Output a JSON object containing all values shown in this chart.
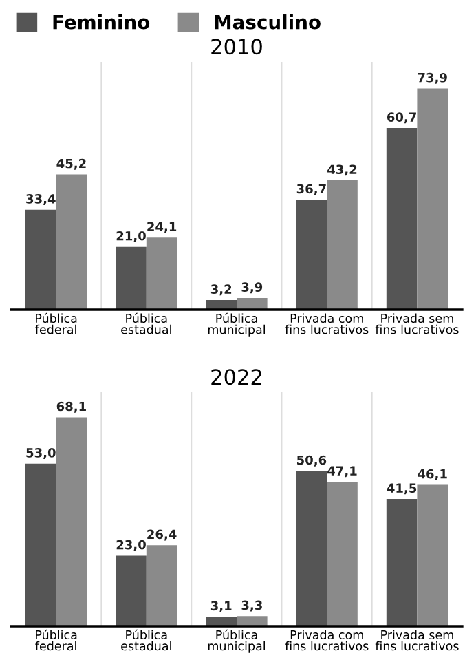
{
  "chart_data": [
    {
      "type": "bar",
      "title": "2010",
      "legend": "top left",
      "categories": [
        "Pública\nfederal",
        "Pública\nestadual",
        "Pública\nmunicipal",
        "Privada com\nfins lucrativos",
        "Privada sem\nfins lucrativos"
      ],
      "series": [
        {
          "name": "Feminino",
          "color": "#555555",
          "values": [
            33.4,
            21.0,
            3.2,
            36.7,
            60.7
          ],
          "value_labels": [
            "33,4",
            "21,0",
            "3,2",
            "36,7",
            "60,7"
          ]
        },
        {
          "name": "Masculino",
          "color": "#8a8a8a",
          "values": [
            45.2,
            24.1,
            3.9,
            43.2,
            73.9
          ],
          "value_labels": [
            "45,2",
            "24,1",
            "3,9",
            "43,2",
            "73,9"
          ]
        }
      ]
    },
    {
      "type": "bar",
      "title": "2022",
      "categories": [
        "Pública\nfederal",
        "Pública\nestadual",
        "Pública\nmunicipal",
        "Privada com\nfins lucrativos",
        "Privada sem\nfins lucrativos"
      ],
      "series": [
        {
          "color": "#555555",
          "values": [
            53.0,
            23.0,
            3.1,
            50.6,
            41.5
          ],
          "value_labels": [
            "53,0",
            "23,0",
            "3,1",
            "50,6",
            "41,5"
          ]
        },
        {
          "color": "#8a8a8a",
          "values": [
            68.1,
            26.4,
            3.3,
            47.1,
            46.1
          ],
          "value_labels": [
            "68,1",
            "26,4",
            "3,3",
            "47,1",
            "46,1"
          ]
        }
      ]
    }
  ]
}
